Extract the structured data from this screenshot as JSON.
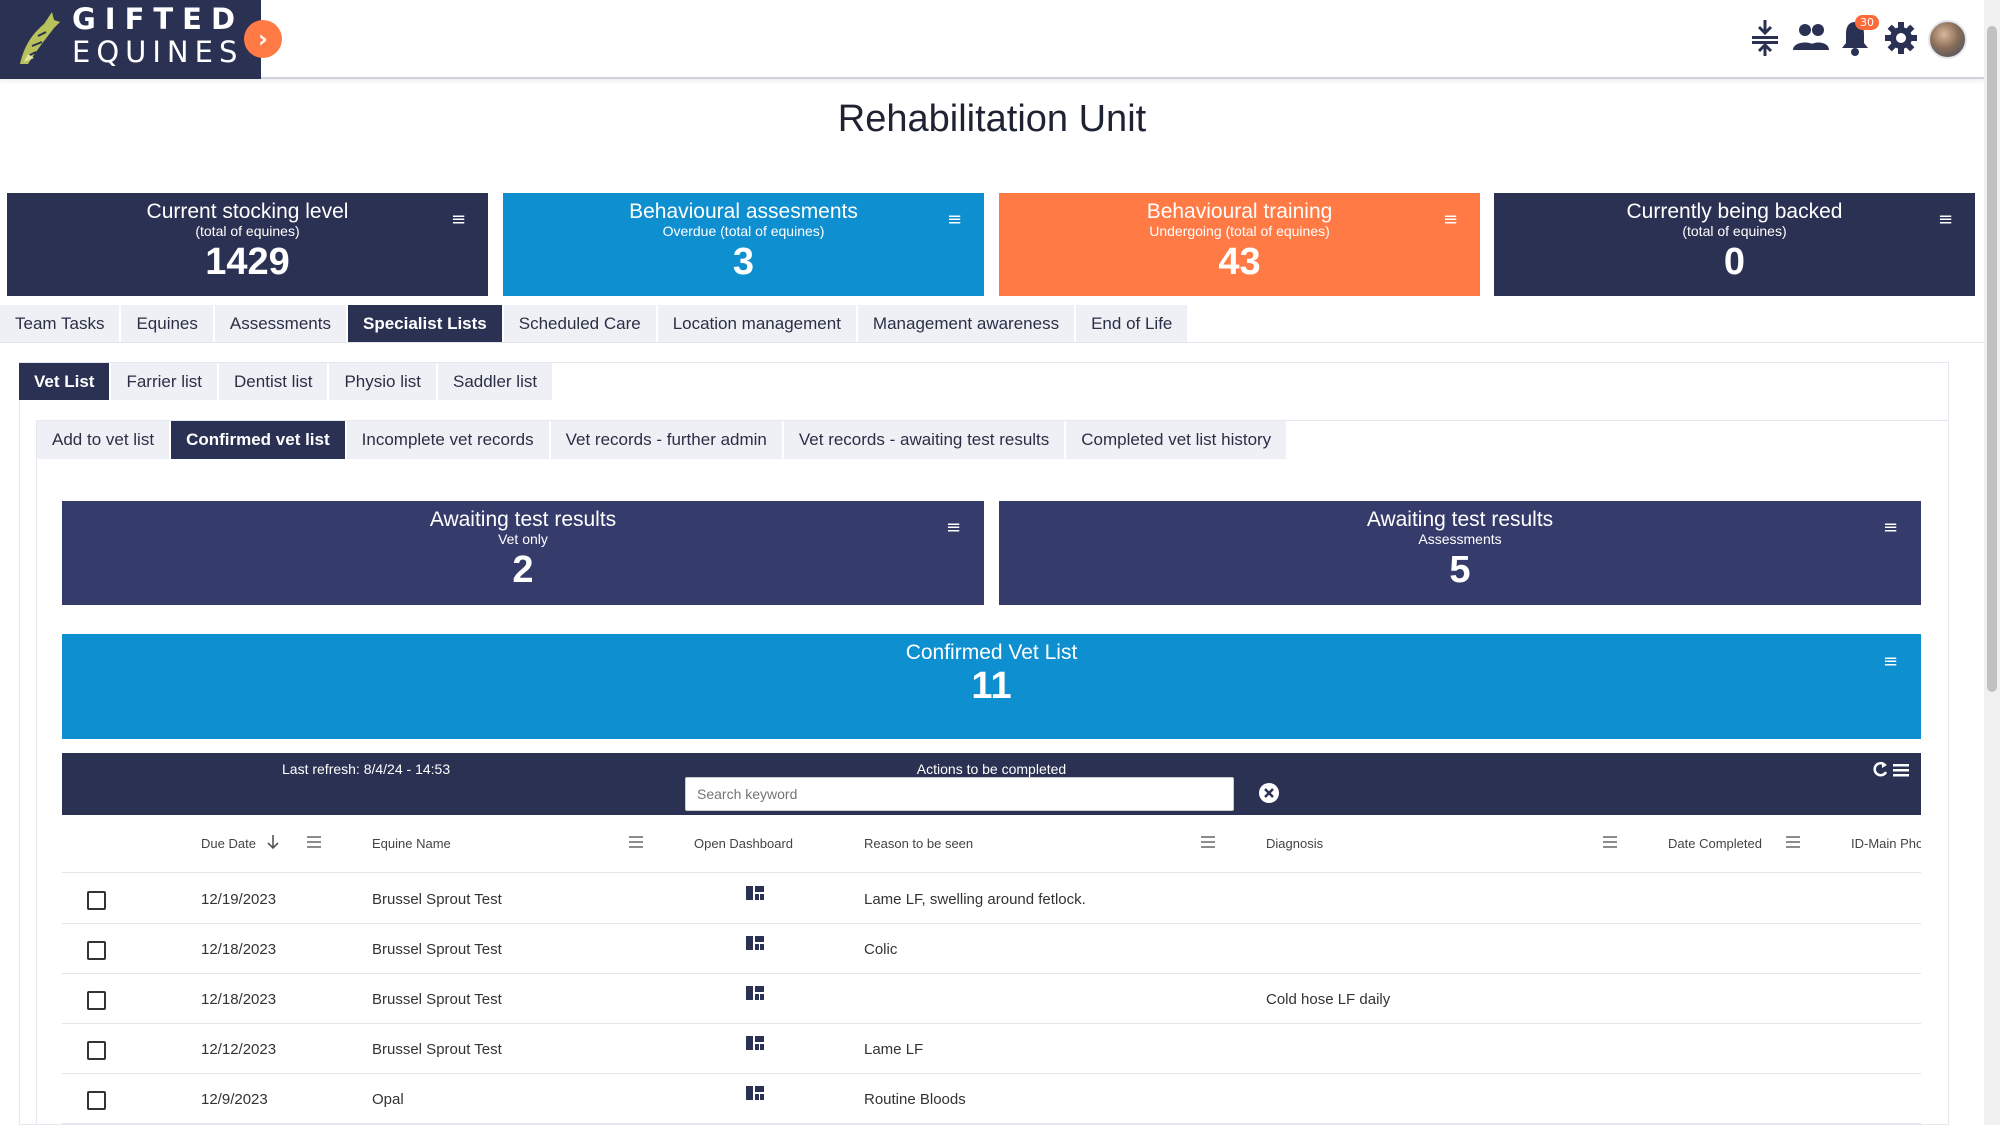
{
  "app": {
    "logo_line1": "GIFTED",
    "logo_line2": "EQUINES",
    "notification_count": "30"
  },
  "page_title": "Rehabilitation Unit",
  "summary_cards": [
    {
      "title": "Current stocking level",
      "subtitle": "(total of equines)",
      "value": "1429",
      "color": "#2b3153"
    },
    {
      "title": "Behavioural assesments",
      "subtitle": "Overdue (total of equines)",
      "value": "3",
      "color": "#0e8fd0"
    },
    {
      "title": "Behavioural training",
      "subtitle": "Undergoing (total of equines)",
      "value": "43",
      "color": "#ff7a45"
    },
    {
      "title": "Currently being backed",
      "subtitle": "(total of equines)",
      "value": "0",
      "color": "#2b3153"
    }
  ],
  "main_tabs": [
    "Team Tasks",
    "Equines",
    "Assessments",
    "Specialist Lists",
    "Scheduled Care",
    "Location management",
    "Management awareness",
    "End of Life"
  ],
  "specialist_tabs": [
    "Vet List",
    "Farrier list",
    "Dentist list",
    "Physio list",
    "Saddler list"
  ],
  "vet_tabs": [
    "Add to vet list",
    "Confirmed vet list",
    "Incomplete vet records",
    "Vet records - further admin",
    "Vet records - awaiting test results",
    "Completed vet list history"
  ],
  "sub_cards": [
    {
      "title": "Awaiting test results",
      "subtitle": "Vet only",
      "value": "2"
    },
    {
      "title": "Awaiting test results",
      "subtitle": "Assessments",
      "value": "5"
    }
  ],
  "confirmed_card": {
    "title": "Confirmed Vet List",
    "value": "11",
    "color": "#0e8fd0"
  },
  "table_toolbar": {
    "last_refresh": "Last refresh: 8/4/24 - 14:53",
    "title": "Actions to be completed",
    "search_placeholder": "Search keyword"
  },
  "columns": [
    "Due Date",
    "Equine Name",
    "Open Dashboard",
    "Reason to be seen",
    "Diagnosis",
    "Date Completed",
    "ID-Main Pho"
  ],
  "rows": [
    {
      "due_date": "12/19/2023",
      "equine": "Brussel Sprout Test",
      "reason": "Lame LF, swelling around fetlock.",
      "diagnosis": ""
    },
    {
      "due_date": "12/18/2023",
      "equine": "Brussel Sprout Test",
      "reason": "Colic",
      "diagnosis": ""
    },
    {
      "due_date": "12/18/2023",
      "equine": "Brussel Sprout Test",
      "reason": "",
      "diagnosis": "Cold hose LF daily"
    },
    {
      "due_date": "12/12/2023",
      "equine": "Brussel Sprout Test",
      "reason": "Lame LF",
      "diagnosis": ""
    },
    {
      "due_date": "12/9/2023",
      "equine": "Opal",
      "reason": "Routine Bloods",
      "diagnosis": ""
    }
  ]
}
